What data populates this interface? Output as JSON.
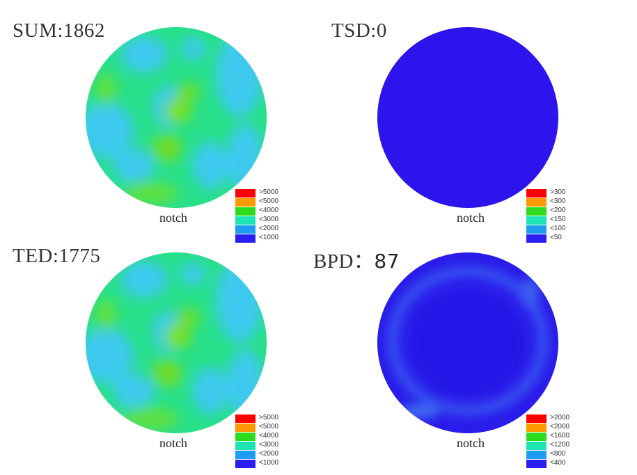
{
  "panels": [
    {
      "id": "sum",
      "title": "SUM:1862",
      "notch": "notch",
      "map": "sum",
      "legend": [
        {
          "label": ">5000",
          "color": "#ff0000"
        },
        {
          "label": "<5000",
          "color": "#ff9900"
        },
        {
          "label": "<4000",
          "color": "#2ddc1e"
        },
        {
          "label": "<3000",
          "color": "#1ee4b4"
        },
        {
          "label": "<2000",
          "color": "#1e9cf0"
        },
        {
          "label": "<1000",
          "color": "#2a1ef0"
        }
      ]
    },
    {
      "id": "tsd",
      "title": "TSD:0",
      "notch": "notch",
      "map": "tsd",
      "legend": [
        {
          "label": ">300",
          "color": "#ff0000"
        },
        {
          "label": "<300",
          "color": "#ff9900"
        },
        {
          "label": "<200",
          "color": "#2ddc1e"
        },
        {
          "label": "<150",
          "color": "#1ee4b4"
        },
        {
          "label": "<100",
          "color": "#1e9cf0"
        },
        {
          "label": "<50",
          "color": "#2a1ef0"
        }
      ]
    },
    {
      "id": "ted",
      "title": "TED:1775",
      "notch": "notch",
      "map": "ted",
      "legend": [
        {
          "label": ">5000",
          "color": "#ff0000"
        },
        {
          "label": "<5000",
          "color": "#ff9900"
        },
        {
          "label": "<4000",
          "color": "#2ddc1e"
        },
        {
          "label": "<3000",
          "color": "#1ee4b4"
        },
        {
          "label": "<2000",
          "color": "#1e9cf0"
        },
        {
          "label": "<1000",
          "color": "#2a1ef0"
        }
      ]
    },
    {
      "id": "bpd",
      "title_label": "BPD：",
      "title_value": "87",
      "notch": "notch",
      "map": "bpd",
      "legend": [
        {
          "label": ">2000",
          "color": "#ff0000"
        },
        {
          "label": "<2000",
          "color": "#ff9900"
        },
        {
          "label": "<1600",
          "color": "#2ddc1e"
        },
        {
          "label": "<1200",
          "color": "#1ee4b4"
        },
        {
          "label": "<800",
          "color": "#1e9cf0"
        },
        {
          "label": "<400",
          "color": "#2a1ef0"
        }
      ]
    }
  ]
}
